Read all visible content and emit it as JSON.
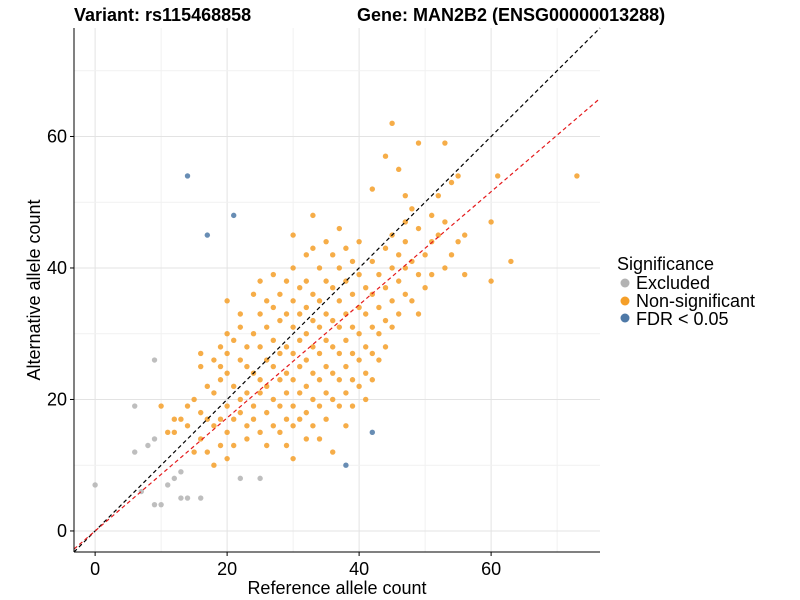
{
  "title_left": "Variant: rs115468858",
  "title_right": "Gene: MAN2B2 (ENSG00000013288)",
  "chart_data": {
    "type": "scatter",
    "xlabel": "Reference allele count",
    "ylabel": "Alternative allele count",
    "xlim": [
      -3.2,
      76.5
    ],
    "ylim": [
      -3.2,
      76.5
    ],
    "xticks": [
      0,
      20,
      40,
      60
    ],
    "yticks": [
      0,
      20,
      40,
      60
    ],
    "grid": true,
    "legend_position": "right",
    "legend_title": "Significance",
    "reference_lines": [
      {
        "name": "y = x",
        "slope": 1.0,
        "intercept": 0,
        "color": "#000000",
        "dashed": true
      },
      {
        "name": "fit",
        "slope": 0.86,
        "intercept": 0,
        "color": "#e41a1c",
        "dashed": true
      }
    ],
    "series": [
      {
        "name": "Excluded",
        "color": "#b3b3b3",
        "points": [
          [
            0,
            7
          ],
          [
            6,
            19
          ],
          [
            6,
            12
          ],
          [
            7,
            6
          ],
          [
            8,
            13
          ],
          [
            9,
            14
          ],
          [
            9,
            26
          ],
          [
            9,
            4
          ],
          [
            10,
            4
          ],
          [
            11,
            7
          ],
          [
            12,
            8
          ],
          [
            13,
            9
          ],
          [
            13,
            5
          ],
          [
            14,
            5
          ],
          [
            16,
            5
          ],
          [
            22,
            8
          ],
          [
            25,
            8
          ]
        ]
      },
      {
        "name": "Non-significant",
        "color": "#f59f28",
        "points": [
          [
            10,
            19
          ],
          [
            11,
            15
          ],
          [
            12,
            17
          ],
          [
            12,
            15
          ],
          [
            13,
            17
          ],
          [
            14,
            19
          ],
          [
            14,
            16
          ],
          [
            15,
            12
          ],
          [
            15,
            20
          ],
          [
            16,
            27
          ],
          [
            16,
            25
          ],
          [
            16,
            18
          ],
          [
            16,
            14
          ],
          [
            17,
            22
          ],
          [
            17,
            17
          ],
          [
            17,
            12
          ],
          [
            18,
            26
          ],
          [
            18,
            21
          ],
          [
            18,
            16
          ],
          [
            18,
            10
          ],
          [
            19,
            28
          ],
          [
            19,
            25
          ],
          [
            19,
            23
          ],
          [
            19,
            17
          ],
          [
            19,
            13
          ],
          [
            20,
            35
          ],
          [
            20,
            30
          ],
          [
            20,
            27
          ],
          [
            20,
            24
          ],
          [
            20,
            19
          ],
          [
            20,
            15
          ],
          [
            20,
            11
          ],
          [
            21,
            29
          ],
          [
            21,
            22
          ],
          [
            21,
            17
          ],
          [
            21,
            13
          ],
          [
            22,
            33
          ],
          [
            22,
            31
          ],
          [
            22,
            26
          ],
          [
            22,
            20
          ],
          [
            22,
            18
          ],
          [
            23,
            28
          ],
          [
            23,
            25
          ],
          [
            23,
            21
          ],
          [
            23,
            16
          ],
          [
            23,
            14
          ],
          [
            24,
            36
          ],
          [
            24,
            30
          ],
          [
            24,
            24
          ],
          [
            24,
            19
          ],
          [
            24,
            17
          ],
          [
            25,
            38
          ],
          [
            25,
            33
          ],
          [
            25,
            28
          ],
          [
            25,
            23
          ],
          [
            25,
            21
          ],
          [
            25,
            15
          ],
          [
            26,
            35
          ],
          [
            26,
            31
          ],
          [
            26,
            26
          ],
          [
            26,
            22
          ],
          [
            26,
            18
          ],
          [
            26,
            13
          ],
          [
            27,
            39
          ],
          [
            27,
            34
          ],
          [
            27,
            29
          ],
          [
            27,
            25
          ],
          [
            27,
            20
          ],
          [
            27,
            16
          ],
          [
            28,
            36
          ],
          [
            28,
            32
          ],
          [
            28,
            27
          ],
          [
            28,
            23
          ],
          [
            28,
            19
          ],
          [
            28,
            15
          ],
          [
            29,
            38
          ],
          [
            29,
            33
          ],
          [
            29,
            28
          ],
          [
            29,
            24
          ],
          [
            29,
            21
          ],
          [
            29,
            17
          ],
          [
            29,
            13
          ],
          [
            30,
            45
          ],
          [
            30,
            40
          ],
          [
            30,
            35
          ],
          [
            30,
            31
          ],
          [
            30,
            27
          ],
          [
            30,
            23
          ],
          [
            30,
            19
          ],
          [
            30,
            16
          ],
          [
            30,
            11
          ],
          [
            31,
            37
          ],
          [
            31,
            33
          ],
          [
            31,
            29
          ],
          [
            31,
            25
          ],
          [
            31,
            21
          ],
          [
            31,
            17
          ],
          [
            32,
            42
          ],
          [
            32,
            38
          ],
          [
            32,
            34
          ],
          [
            32,
            30
          ],
          [
            32,
            26
          ],
          [
            32,
            22
          ],
          [
            32,
            18
          ],
          [
            32,
            14
          ],
          [
            33,
            48
          ],
          [
            33,
            43
          ],
          [
            33,
            36
          ],
          [
            33,
            32
          ],
          [
            33,
            28
          ],
          [
            33,
            24
          ],
          [
            33,
            20
          ],
          [
            33,
            16
          ],
          [
            34,
            40
          ],
          [
            34,
            35
          ],
          [
            34,
            31
          ],
          [
            34,
            27
          ],
          [
            34,
            23
          ],
          [
            34,
            19
          ],
          [
            34,
            14
          ],
          [
            35,
            44
          ],
          [
            35,
            38
          ],
          [
            35,
            33
          ],
          [
            35,
            29
          ],
          [
            35,
            25
          ],
          [
            35,
            21
          ],
          [
            35,
            17
          ],
          [
            36,
            42
          ],
          [
            36,
            37
          ],
          [
            36,
            32
          ],
          [
            36,
            28
          ],
          [
            36,
            24
          ],
          [
            36,
            20
          ],
          [
            36,
            12
          ],
          [
            37,
            46
          ],
          [
            37,
            40
          ],
          [
            37,
            35
          ],
          [
            37,
            31
          ],
          [
            37,
            27
          ],
          [
            37,
            23
          ],
          [
            37,
            19
          ],
          [
            38,
            43
          ],
          [
            38,
            38
          ],
          [
            38,
            33
          ],
          [
            38,
            29
          ],
          [
            38,
            25
          ],
          [
            38,
            21
          ],
          [
            38,
            16
          ],
          [
            39,
            41
          ],
          [
            39,
            36
          ],
          [
            39,
            31
          ],
          [
            39,
            27
          ],
          [
            39,
            23
          ],
          [
            39,
            19
          ],
          [
            40,
            44
          ],
          [
            40,
            39
          ],
          [
            40,
            34
          ],
          [
            40,
            30
          ],
          [
            40,
            26
          ],
          [
            40,
            22
          ],
          [
            41,
            37
          ],
          [
            41,
            33
          ],
          [
            41,
            28
          ],
          [
            41,
            24
          ],
          [
            41,
            20
          ],
          [
            42,
            52
          ],
          [
            42,
            41
          ],
          [
            42,
            36
          ],
          [
            42,
            31
          ],
          [
            42,
            27
          ],
          [
            42,
            23
          ],
          [
            43,
            39
          ],
          [
            43,
            34
          ],
          [
            43,
            30
          ],
          [
            43,
            26
          ],
          [
            44,
            57
          ],
          [
            44,
            43
          ],
          [
            44,
            37
          ],
          [
            44,
            32
          ],
          [
            44,
            28
          ],
          [
            45,
            45
          ],
          [
            45,
            40
          ],
          [
            45,
            35
          ],
          [
            45,
            31
          ],
          [
            45,
            62
          ],
          [
            46,
            55
          ],
          [
            46,
            42
          ],
          [
            46,
            38
          ],
          [
            46,
            33
          ],
          [
            47,
            51
          ],
          [
            47,
            47
          ],
          [
            47,
            44
          ],
          [
            47,
            40
          ],
          [
            47,
            36
          ],
          [
            48,
            49
          ],
          [
            48,
            41
          ],
          [
            48,
            35
          ],
          [
            49,
            59
          ],
          [
            49,
            46
          ],
          [
            49,
            39
          ],
          [
            49,
            33
          ],
          [
            50,
            42
          ],
          [
            50,
            37
          ],
          [
            51,
            48
          ],
          [
            51,
            44
          ],
          [
            51,
            39
          ],
          [
            52,
            51
          ],
          [
            52,
            45
          ],
          [
            53,
            59
          ],
          [
            53,
            47
          ],
          [
            53,
            40
          ],
          [
            54,
            53
          ],
          [
            54,
            42
          ],
          [
            55,
            44
          ],
          [
            55,
            54
          ],
          [
            56,
            45
          ],
          [
            56,
            39
          ],
          [
            60,
            47
          ],
          [
            60,
            38
          ],
          [
            61,
            54
          ],
          [
            63,
            41
          ],
          [
            73,
            54
          ]
        ]
      },
      {
        "name": "FDR < 0.05",
        "color": "#4e79a7",
        "points": [
          [
            14,
            54
          ],
          [
            17,
            45
          ],
          [
            21,
            48
          ],
          [
            38,
            10
          ],
          [
            42,
            15
          ]
        ]
      }
    ]
  }
}
